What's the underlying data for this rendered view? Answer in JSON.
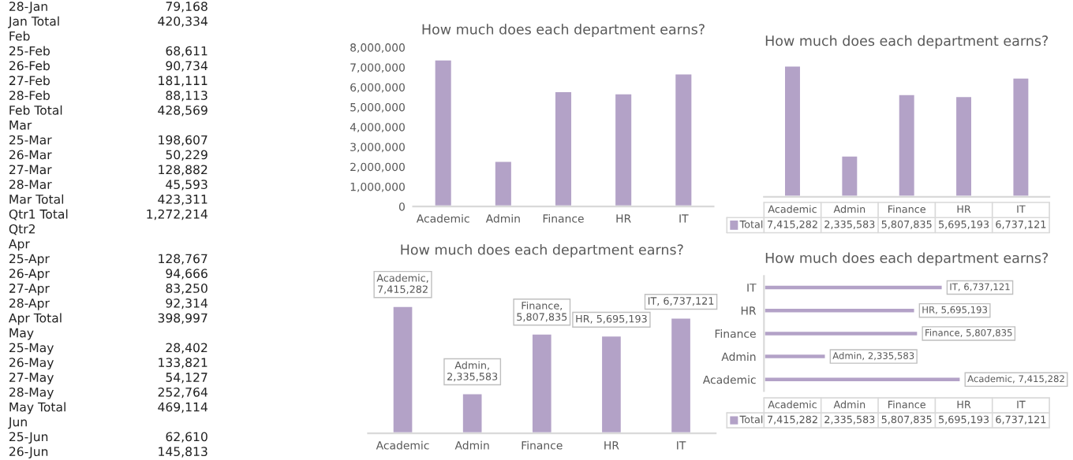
{
  "chart_data": [
    {
      "type": "other",
      "categories": [
        "28-Jan",
        "Jan Total",
        "Feb",
        "25-Feb",
        "26-Feb",
        "27-Feb",
        "28-Feb",
        "Feb Total",
        "Mar",
        "25-Mar",
        "26-Mar",
        "27-Mar",
        "28-Mar",
        "Mar Total",
        "Qtr1 Total",
        "Qtr2",
        "Apr",
        "25-Apr",
        "26-Apr",
        "27-Apr",
        "28-Apr",
        "Apr Total",
        "May",
        "25-May",
        "26-May",
        "27-May",
        "28-May",
        "May Total",
        "Jun",
        "25-Jun",
        "26-Jun"
      ],
      "value_labels": [
        "79,168",
        "420,334",
        null,
        "68,611",
        "90,734",
        "181,111",
        "88,113",
        "428,569",
        null,
        "198,607",
        "50,229",
        "128,882",
        "45,593",
        "423,311",
        "1,272,214",
        null,
        null,
        "128,767",
        "94,666",
        "83,250",
        "92,314",
        "398,997",
        null,
        "28,402",
        "133,821",
        "54,127",
        "252,764",
        "469,114",
        null,
        "62,610",
        "145,813"
      ]
    },
    {
      "type": "bar",
      "title": "How much does each department earns?",
      "categories": [
        "Academic",
        "Admin",
        "Finance",
        "HR",
        "IT"
      ],
      "series": [
        {
          "color": "#b3a2c7",
          "values": [
            7400000,
            2300000,
            5800000,
            5700000,
            6700000
          ]
        }
      ],
      "ylim": [
        0,
        8000000
      ],
      "yticks": [
        {
          "value": 0,
          "label": "0"
        },
        {
          "value": 1000000,
          "label": "1,000,000"
        },
        {
          "value": 2000000,
          "label": "2,000,000"
        },
        {
          "value": 3000000,
          "label": "3,000,000"
        },
        {
          "value": 4000000,
          "label": "4,000,000"
        },
        {
          "value": 5000000,
          "label": "5,000,000"
        },
        {
          "value": 6000000,
          "label": "6,000,000"
        },
        {
          "value": 7000000,
          "label": "7,000,000"
        },
        {
          "value": 8000000,
          "label": "8,000,000"
        }
      ]
    },
    {
      "type": "bar",
      "title": "How much does each department earns?",
      "categories": [
        "Academic",
        "Admin",
        "Finance",
        "HR",
        "IT"
      ],
      "series": [
        {
          "name": "Total",
          "color": "#b3a2c7",
          "values": [
            7415282,
            2335583,
            5807835,
            5695193,
            6737121
          ],
          "value_labels": [
            "7,415,282",
            "2,335,583",
            "5,807,835",
            "5,695,193",
            "6,737,121"
          ]
        }
      ],
      "data_labels": true,
      "tick_labels": "x"
    },
    {
      "type": "bar",
      "title": "How much does each department earns?",
      "categories": [
        "Academic",
        "Admin",
        "Finance",
        "HR",
        "IT"
      ],
      "series": [
        {
          "color": "#b3a2c7",
          "values": [
            7415282,
            2335583,
            5807835,
            5695193,
            6737121
          ],
          "value_labels": [
            "Academic,\n7,415,282",
            "Admin,\n2,335,583",
            "Finance,\n5,807,835",
            "HR, 5,695,193",
            "IT, 6,737,121"
          ]
        }
      ],
      "tick_labels": "x"
    },
    {
      "type": "bar",
      "orientation": "horizontal",
      "title": "How much does each department earns?",
      "categories": [
        "IT",
        "HR",
        "Finance",
        "Admin",
        "Academic"
      ],
      "series": [
        {
          "name": "Total",
          "color": "#b3a2c7",
          "values": [
            6737121,
            5695193,
            5807835,
            2335583,
            7415282
          ],
          "value_labels": [
            "IT, 6,737,121",
            "HR, 5,695,193",
            "Finance, 5,807,835",
            "Admin, 2,335,583",
            "Academic, 7,415,282"
          ]
        }
      ],
      "annotations": [
        "7,415,282",
        "2,335,583",
        "5,807,835",
        "5,695,193",
        "6,737,121"
      ],
      "data_labels": true,
      "tick_labels": "y"
    }
  ]
}
